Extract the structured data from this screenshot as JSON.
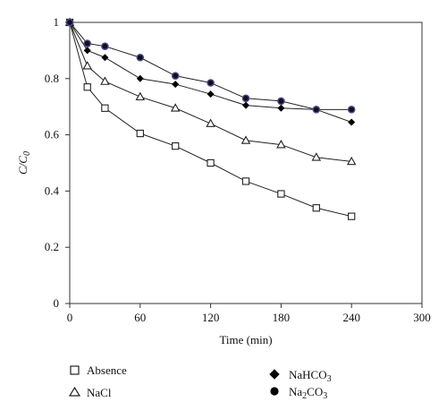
{
  "chart_data": {
    "type": "line",
    "xlabel": "Time (min)",
    "ylabel": "C/C",
    "ylabel_subscript": "0",
    "xlim": [
      0,
      300
    ],
    "ylim": [
      0,
      1
    ],
    "xticks": [
      "0",
      "60",
      "120",
      "180",
      "240",
      "300"
    ],
    "yticks": [
      "0",
      "0.2",
      "0.4",
      "0.6",
      "0.8",
      "1"
    ],
    "grid": false,
    "legend_placement": "bottom",
    "series": [
      {
        "name": "Absence",
        "marker": "open-square",
        "color": "#222222",
        "x": [
          0,
          15,
          30,
          60,
          90,
          120,
          150,
          180,
          210,
          240
        ],
        "y": [
          1.0,
          0.77,
          0.695,
          0.605,
          0.56,
          0.5,
          0.435,
          0.39,
          0.34,
          0.31
        ]
      },
      {
        "name": "NaCl",
        "marker": "open-triangle",
        "color": "#222222",
        "x": [
          0,
          15,
          30,
          60,
          90,
          120,
          150,
          180,
          210,
          240
        ],
        "y": [
          1.0,
          0.845,
          0.79,
          0.735,
          0.695,
          0.64,
          0.58,
          0.565,
          0.52,
          0.505
        ]
      },
      {
        "name": "NaHCO",
        "name_subscript": "3",
        "marker": "filled-diamond",
        "color": "#000000",
        "x": [
          0,
          15,
          30,
          60,
          90,
          120,
          150,
          180,
          210,
          240
        ],
        "y": [
          1.0,
          0.9,
          0.875,
          0.8,
          0.78,
          0.745,
          0.705,
          0.695,
          0.69,
          0.645
        ]
      },
      {
        "name": "NaCO",
        "name_prefix": "Na",
        "name_subscript": "2",
        "name_suffix": "CO",
        "name_subscript2": "3",
        "marker": "filled-circle",
        "color": "#111111",
        "highlight": "#4a4a9a",
        "x": [
          0,
          15,
          30,
          60,
          90,
          120,
          150,
          180,
          210,
          240
        ],
        "y": [
          1.0,
          0.925,
          0.915,
          0.875,
          0.81,
          0.785,
          0.73,
          0.72,
          0.69,
          0.69
        ]
      }
    ]
  },
  "legend": {
    "absence": "Absence",
    "nacl": "NaCl",
    "nahco3_base": "NaHCO",
    "nahco3_sub": "3",
    "na2co3_a": "Na",
    "na2co3_sub1": "2",
    "na2co3_b": "CO",
    "na2co3_sub2": "3"
  }
}
